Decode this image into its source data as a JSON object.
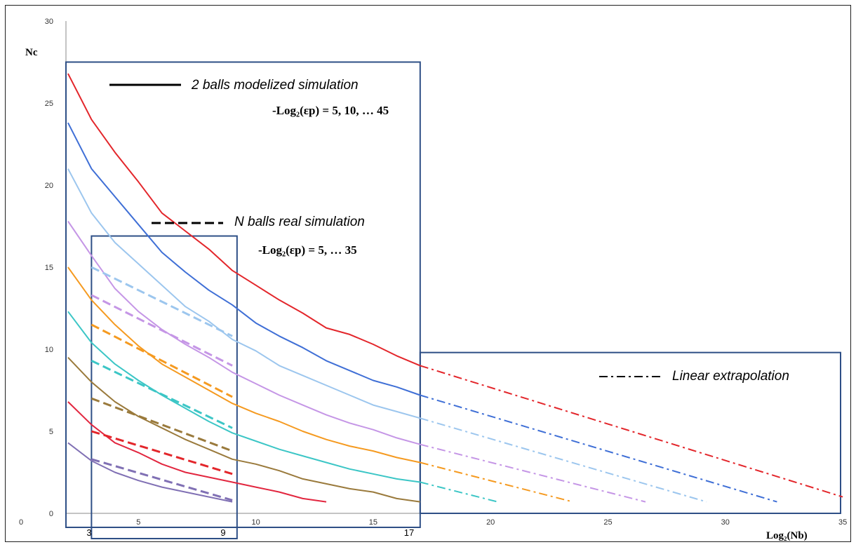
{
  "chart_data": {
    "type": "line",
    "xlabel": "Log₂(Nb)",
    "ylabel": "Nc",
    "xlim": [
      0,
      35
    ],
    "ylim": [
      0,
      30
    ],
    "xticks": [
      0,
      5,
      10,
      15,
      20,
      25,
      30,
      35
    ],
    "yticks": [
      0,
      5,
      10,
      15,
      20,
      25,
      30
    ],
    "grid": false,
    "colors": {
      "red": "#e3262b",
      "blue": "#3f6fd6",
      "lightblue": "#9cc6ee",
      "lilac": "#c596e6",
      "orange": "#f59a20",
      "teal": "#3cc6c6",
      "olive": "#9a7a3c",
      "crimson": "#e2263f",
      "purple": "#8070b4",
      "frame": "#2e4f86"
    },
    "legend": {
      "solid_label": "2 balls modelized simulation",
      "solid_sub": "-Log₂(εp) = 5, 10, … 45",
      "dashed_label": "N balls real simulation",
      "dashed_sub": "-Log₂(εp) = 5, … 35",
      "dashdot_label": "Linear extrapolation"
    },
    "region_bounds": [
      "3",
      "9",
      "17"
    ],
    "solid_series": [
      {
        "color": "red",
        "x": [
          2,
          3,
          4,
          5,
          6,
          7,
          8,
          9,
          10,
          11,
          12,
          13,
          14,
          15,
          16,
          17
        ],
        "y": [
          26.8,
          24,
          22,
          20.2,
          18.3,
          17.2,
          16.1,
          14.8,
          13.9,
          13,
          12.2,
          11.3,
          10.9,
          10.3,
          9.6,
          9
        ]
      },
      {
        "color": "blue",
        "x": [
          2,
          3,
          4,
          5,
          6,
          7,
          8,
          9,
          10,
          11,
          12,
          13,
          14,
          15,
          16,
          17
        ],
        "y": [
          23.8,
          21,
          19.3,
          17.6,
          15.9,
          14.7,
          13.6,
          12.7,
          11.6,
          10.8,
          10.1,
          9.3,
          8.7,
          8.1,
          7.7,
          7.2
        ]
      },
      {
        "color": "lightblue",
        "x": [
          2,
          3,
          4,
          5,
          6,
          7,
          8,
          9,
          10,
          11,
          12,
          13,
          14,
          15,
          16,
          17
        ],
        "y": [
          21,
          18.3,
          16.5,
          15.2,
          13.9,
          12.6,
          11.7,
          10.6,
          9.9,
          9,
          8.4,
          7.8,
          7.2,
          6.6,
          6.2,
          5.8
        ]
      },
      {
        "color": "lilac",
        "x": [
          2,
          3,
          4,
          5,
          6,
          7,
          8,
          9,
          10,
          11,
          12,
          13,
          14,
          15,
          16,
          17
        ],
        "y": [
          17.8,
          15.7,
          13.7,
          12.3,
          11.2,
          10.3,
          9.5,
          8.6,
          7.9,
          7.2,
          6.6,
          6,
          5.5,
          5.1,
          4.6,
          4.2
        ]
      },
      {
        "color": "orange",
        "x": [
          2,
          3,
          4,
          5,
          6,
          7,
          8,
          9,
          10,
          11,
          12,
          13,
          14,
          15,
          16,
          17
        ],
        "y": [
          15,
          13,
          11.5,
          10.2,
          9.1,
          8.3,
          7.5,
          6.7,
          6.1,
          5.6,
          5,
          4.5,
          4.1,
          3.8,
          3.4,
          3.1
        ]
      },
      {
        "color": "teal",
        "x": [
          2,
          3,
          4,
          5,
          6,
          7,
          8,
          9,
          10,
          11,
          12,
          13,
          14,
          15,
          16,
          17
        ],
        "y": [
          12.3,
          10.4,
          9.1,
          8.1,
          7.2,
          6.4,
          5.6,
          4.9,
          4.4,
          3.9,
          3.5,
          3.1,
          2.7,
          2.4,
          2.1,
          1.9
        ]
      },
      {
        "color": "olive",
        "x": [
          2,
          3,
          4,
          5,
          6,
          7,
          8,
          9,
          10,
          11,
          12,
          13,
          14,
          15,
          16,
          17
        ],
        "y": [
          9.5,
          8,
          6.8,
          5.9,
          5.2,
          4.5,
          3.9,
          3.3,
          3,
          2.6,
          2.1,
          1.8,
          1.5,
          1.3,
          0.9,
          0.7
        ]
      },
      {
        "color": "crimson",
        "x": [
          2,
          3,
          4,
          5,
          6,
          7,
          8,
          9,
          10,
          11,
          12,
          13
        ],
        "y": [
          6.8,
          5.4,
          4.3,
          3.7,
          3,
          2.5,
          2.2,
          1.9,
          1.6,
          1.3,
          0.9,
          0.7
        ]
      },
      {
        "color": "purple",
        "x": [
          2,
          3,
          4,
          5,
          6,
          7,
          8,
          9
        ],
        "y": [
          4.3,
          3.2,
          2.5,
          2,
          1.6,
          1.3,
          1,
          0.7
        ]
      }
    ],
    "dashed_series": [
      {
        "color": "lightblue",
        "x": [
          3,
          9
        ],
        "y": [
          15,
          10.8
        ]
      },
      {
        "color": "lilac",
        "x": [
          3,
          9
        ],
        "y": [
          13.3,
          9
        ]
      },
      {
        "color": "orange",
        "x": [
          3,
          9
        ],
        "y": [
          11.5,
          7.1
        ]
      },
      {
        "color": "teal",
        "x": [
          3,
          9
        ],
        "y": [
          9.3,
          5.2
        ]
      },
      {
        "color": "olive",
        "x": [
          3,
          9
        ],
        "y": [
          7,
          3.8
        ]
      },
      {
        "color": "red",
        "x": [
          3,
          9
        ],
        "y": [
          5,
          2.4
        ]
      },
      {
        "color": "purple",
        "x": [
          3,
          9
        ],
        "y": [
          3.3,
          0.8
        ]
      }
    ],
    "extrapolation_series": [
      {
        "color": "red",
        "x": [
          17,
          35
        ],
        "y": [
          9,
          1
        ]
      },
      {
        "color": "blue",
        "x": [
          17,
          32.2
        ],
        "y": [
          7.2,
          0.7
        ]
      },
      {
        "color": "lightblue",
        "x": [
          17,
          29.2
        ],
        "y": [
          5.8,
          0.7
        ]
      },
      {
        "color": "lilac",
        "x": [
          17,
          26.6
        ],
        "y": [
          4.2,
          0.7
        ]
      },
      {
        "color": "orange",
        "x": [
          17,
          23.5
        ],
        "y": [
          3.1,
          0.7
        ]
      },
      {
        "color": "teal",
        "x": [
          17,
          20.3
        ],
        "y": [
          1.9,
          0.7
        ]
      }
    ]
  }
}
